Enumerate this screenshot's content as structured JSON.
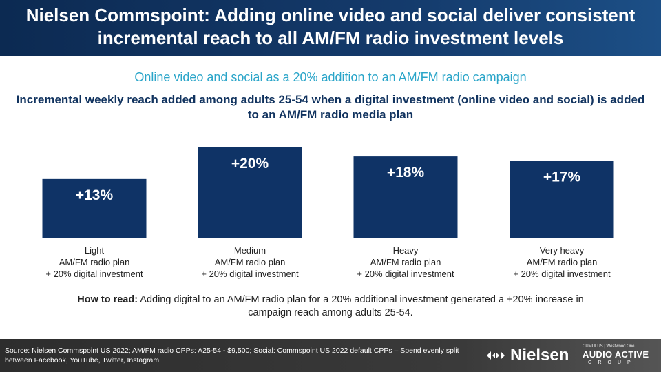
{
  "header": {
    "title_line1": "Nielsen Commspoint: Adding online video and social deliver consistent",
    "title_line2": "incremental reach to all AM/FM radio investment levels"
  },
  "subtitle": "Online video and social as a 20% addition to an AM/FM radio campaign",
  "description": "Incremental weekly reach added among adults 25-54 when a digital investment (online video and social) is added to an AM/FM radio media plan",
  "chart_data": {
    "type": "bar",
    "categories": [
      [
        "Light",
        "AM/FM radio plan",
        "+ 20% digital investment"
      ],
      [
        "Medium",
        "AM/FM radio plan",
        "+ 20% digital investment"
      ],
      [
        "Heavy",
        "AM/FM radio plan",
        "+ 20% digital investment"
      ],
      [
        "Very heavy",
        "AM/FM radio plan",
        "+ 20% digital investment"
      ]
    ],
    "values": [
      13,
      20,
      18,
      17
    ],
    "data_labels": [
      "+13%",
      "+20%",
      "+18%",
      "+17%"
    ],
    "ylim": [
      0,
      20
    ],
    "bar_color": "#0f3366",
    "label_color": "#ffffff",
    "grid": false
  },
  "howto": {
    "lead": "How to read:",
    "text": " Adding digital to an AM/FM radio plan for a 20% additional investment generated a +20% increase in campaign reach among adults 25-54."
  },
  "footer": {
    "source": "Source: Nielsen Commspoint US 2022; AM/FM radio CPPs: A25-54 - $9,500; Social: Commspoint US 2022 default CPPs – Spend evenly split between Facebook, YouTube, Twitter, Instagram",
    "nielsen_logo": "Nielsen",
    "aag_top": "CUMULUS | Westwood One",
    "aag_main": "AUDIO ACTIVE",
    "aag_bottom": "GROUP"
  }
}
